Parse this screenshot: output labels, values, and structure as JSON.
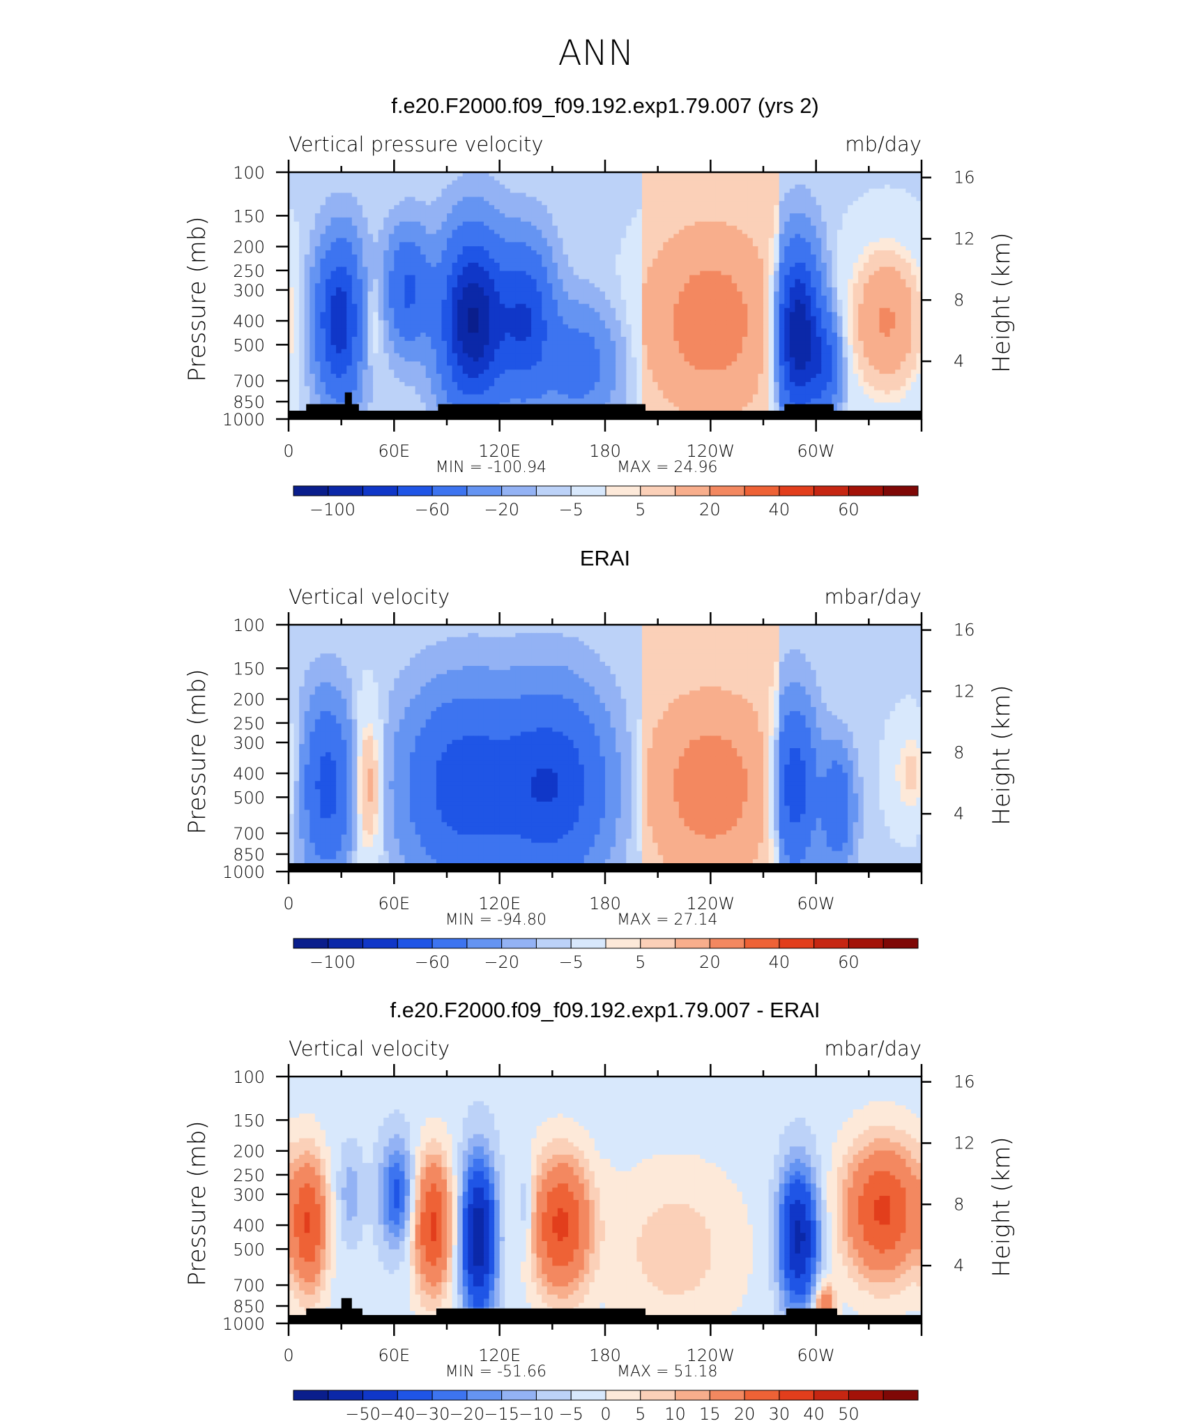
{
  "page_title": "ANN",
  "chart_data": [
    {
      "type": "heatmap",
      "title": "f.e20.F2000.f09_f09.192.exp1.79.007 (yrs 2)",
      "variable": "Vertical pressure velocity",
      "units": "mb/day",
      "ylabel": "Pressure (mb)",
      "y2label": "Height (km)",
      "x_ticks": [
        "0",
        "60E",
        "120E",
        "180",
        "120W",
        "60W"
      ],
      "y_ticks": [
        "100",
        "150",
        "200",
        "250",
        "300",
        "400",
        "500",
        "700",
        "850",
        "1000"
      ],
      "y2_ticks": [
        "16",
        "12",
        "8",
        "4"
      ],
      "min_label": "MIN = -100.94",
      "max_label": "MAX = 24.96",
      "min": -100.94,
      "max": 24.96,
      "colorbar_labels": [
        "−100",
        "−60",
        "−20",
        "−5",
        "5",
        "20",
        "40",
        "60"
      ],
      "features": [
        {
          "lon": 30,
          "p": 400,
          "v": -75,
          "w": 9,
          "h": 0.9
        },
        {
          "lon": 42,
          "p": 400,
          "v": 18,
          "w": 7,
          "h": 0.7
        },
        {
          "lon": 68,
          "p": 300,
          "v": -40,
          "w": 8,
          "h": 0.7
        },
        {
          "lon": 105,
          "p": 400,
          "v": -100,
          "w": 12,
          "h": 1.0
        },
        {
          "lon": 135,
          "p": 400,
          "v": -55,
          "w": 10,
          "h": 0.9
        },
        {
          "lon": 165,
          "p": 600,
          "v": -25,
          "w": 14,
          "h": 0.7
        },
        {
          "lon": 240,
          "p": 400,
          "v": 22,
          "w": 22,
          "h": 1.0
        },
        {
          "lon": 290,
          "p": 450,
          "v": -95,
          "w": 8,
          "h": 1.0
        },
        {
          "lon": 305,
          "p": 600,
          "v": -40,
          "w": 6,
          "h": 0.6
        },
        {
          "lon": 340,
          "p": 400,
          "v": 24,
          "w": 14,
          "h": 0.9
        }
      ],
      "terrain": [
        [
          10,
          40,
          870
        ],
        [
          32,
          36,
          780
        ],
        [
          85,
          203,
          870
        ],
        [
          282,
          310,
          870
        ]
      ]
    },
    {
      "type": "heatmap",
      "title": "ERAI",
      "variable": "Vertical velocity",
      "units": "mbar/day",
      "ylabel": "Pressure (mb)",
      "y2label": "Height (km)",
      "x_ticks": [
        "0",
        "60E",
        "120E",
        "180",
        "120W",
        "60W"
      ],
      "y_ticks": [
        "100",
        "150",
        "200",
        "250",
        "300",
        "400",
        "500",
        "700",
        "850",
        "1000"
      ],
      "y2_ticks": [
        "16",
        "12",
        "8",
        "4"
      ],
      "min_label": "MIN = -94.80",
      "max_label": "MAX = 27.14",
      "min": -94.8,
      "max": 27.14,
      "colorbar_labels": [
        "−100",
        "−60",
        "−20",
        "−5",
        "5",
        "20",
        "40",
        "60"
      ],
      "features": [
        {
          "lon": 22,
          "p": 450,
          "v": -45,
          "w": 9,
          "h": 1.0
        },
        {
          "lon": 45,
          "p": 450,
          "v": 18,
          "w": 6,
          "h": 0.9
        },
        {
          "lon": 100,
          "p": 450,
          "v": -50,
          "w": 22,
          "h": 1.1
        },
        {
          "lon": 150,
          "p": 450,
          "v": -55,
          "w": 20,
          "h": 1.1
        },
        {
          "lon": 240,
          "p": 450,
          "v": 22,
          "w": 22,
          "h": 1.0
        },
        {
          "lon": 288,
          "p": 450,
          "v": -50,
          "w": 8,
          "h": 1.0
        },
        {
          "lon": 312,
          "p": 550,
          "v": -35,
          "w": 6,
          "h": 0.7
        },
        {
          "lon": 355,
          "p": 400,
          "v": 10,
          "w": 8,
          "h": 0.6
        }
      ],
      "terrain": []
    },
    {
      "type": "heatmap",
      "title": "f.e20.F2000.f09_f09.192.exp1.79.007 - ERAI",
      "variable": "Vertical velocity",
      "units": "mbar/day",
      "ylabel": "Pressure (mb)",
      "y2label": "Height (km)",
      "x_ticks": [
        "0",
        "60E",
        "120E",
        "180",
        "120W",
        "60W"
      ],
      "y_ticks": [
        "100",
        "150",
        "200",
        "250",
        "300",
        "400",
        "500",
        "700",
        "850",
        "1000"
      ],
      "y2_ticks": [
        "16",
        "12",
        "8",
        "4"
      ],
      "min_label": "MIN = -51.66",
      "max_label": "MAX = 51.18",
      "min": -51.66,
      "max": 51.18,
      "colorbar_labels": [
        "−50",
        "−40",
        "−30",
        "−20",
        "−15",
        "−10",
        "−5",
        "0",
        "5",
        "10",
        "15",
        "20",
        "30",
        "40",
        "50"
      ],
      "features": [
        {
          "lon": 12,
          "p": 400,
          "v": 35,
          "w": 7,
          "h": 0.9
        },
        {
          "lon": 35,
          "p": 300,
          "v": -10,
          "w": 5,
          "h": 0.6
        },
        {
          "lon": 62,
          "p": 300,
          "v": -25,
          "w": 7,
          "h": 0.7
        },
        {
          "lon": 82,
          "p": 400,
          "v": 40,
          "w": 8,
          "h": 0.9
        },
        {
          "lon": 108,
          "p": 450,
          "v": -50,
          "w": 7,
          "h": 1.0
        },
        {
          "lon": 155,
          "p": 400,
          "v": 40,
          "w": 12,
          "h": 0.9
        },
        {
          "lon": 135,
          "p": 350,
          "v": -12,
          "w": 3,
          "h": 0.6
        },
        {
          "lon": 220,
          "p": 500,
          "v": 10,
          "w": 25,
          "h": 1.0
        },
        {
          "lon": 290,
          "p": 450,
          "v": -45,
          "w": 8,
          "h": 0.9
        },
        {
          "lon": 338,
          "p": 350,
          "v": 40,
          "w": 16,
          "h": 0.9
        },
        {
          "lon": 305,
          "p": 850,
          "v": 30,
          "w": 4,
          "h": 0.3
        }
      ],
      "terrain": [
        [
          10,
          42,
          870
        ],
        [
          30,
          36,
          790
        ],
        [
          84,
          203,
          870
        ],
        [
          283,
          312,
          870
        ]
      ]
    }
  ],
  "colorbar_colors": [
    "#0a1e8c",
    "#0b28a8",
    "#1037c8",
    "#1f55e6",
    "#3d74f0",
    "#6594f2",
    "#93b2f4",
    "#bcd2f8",
    "#d8e8fc",
    "#fde9d9",
    "#fbd0b8",
    "#f8ae8c",
    "#f38860",
    "#ee6236",
    "#e23e1c",
    "#c62612",
    "#a31208",
    "#7f0806"
  ],
  "panel_bottom_color": "#000000"
}
